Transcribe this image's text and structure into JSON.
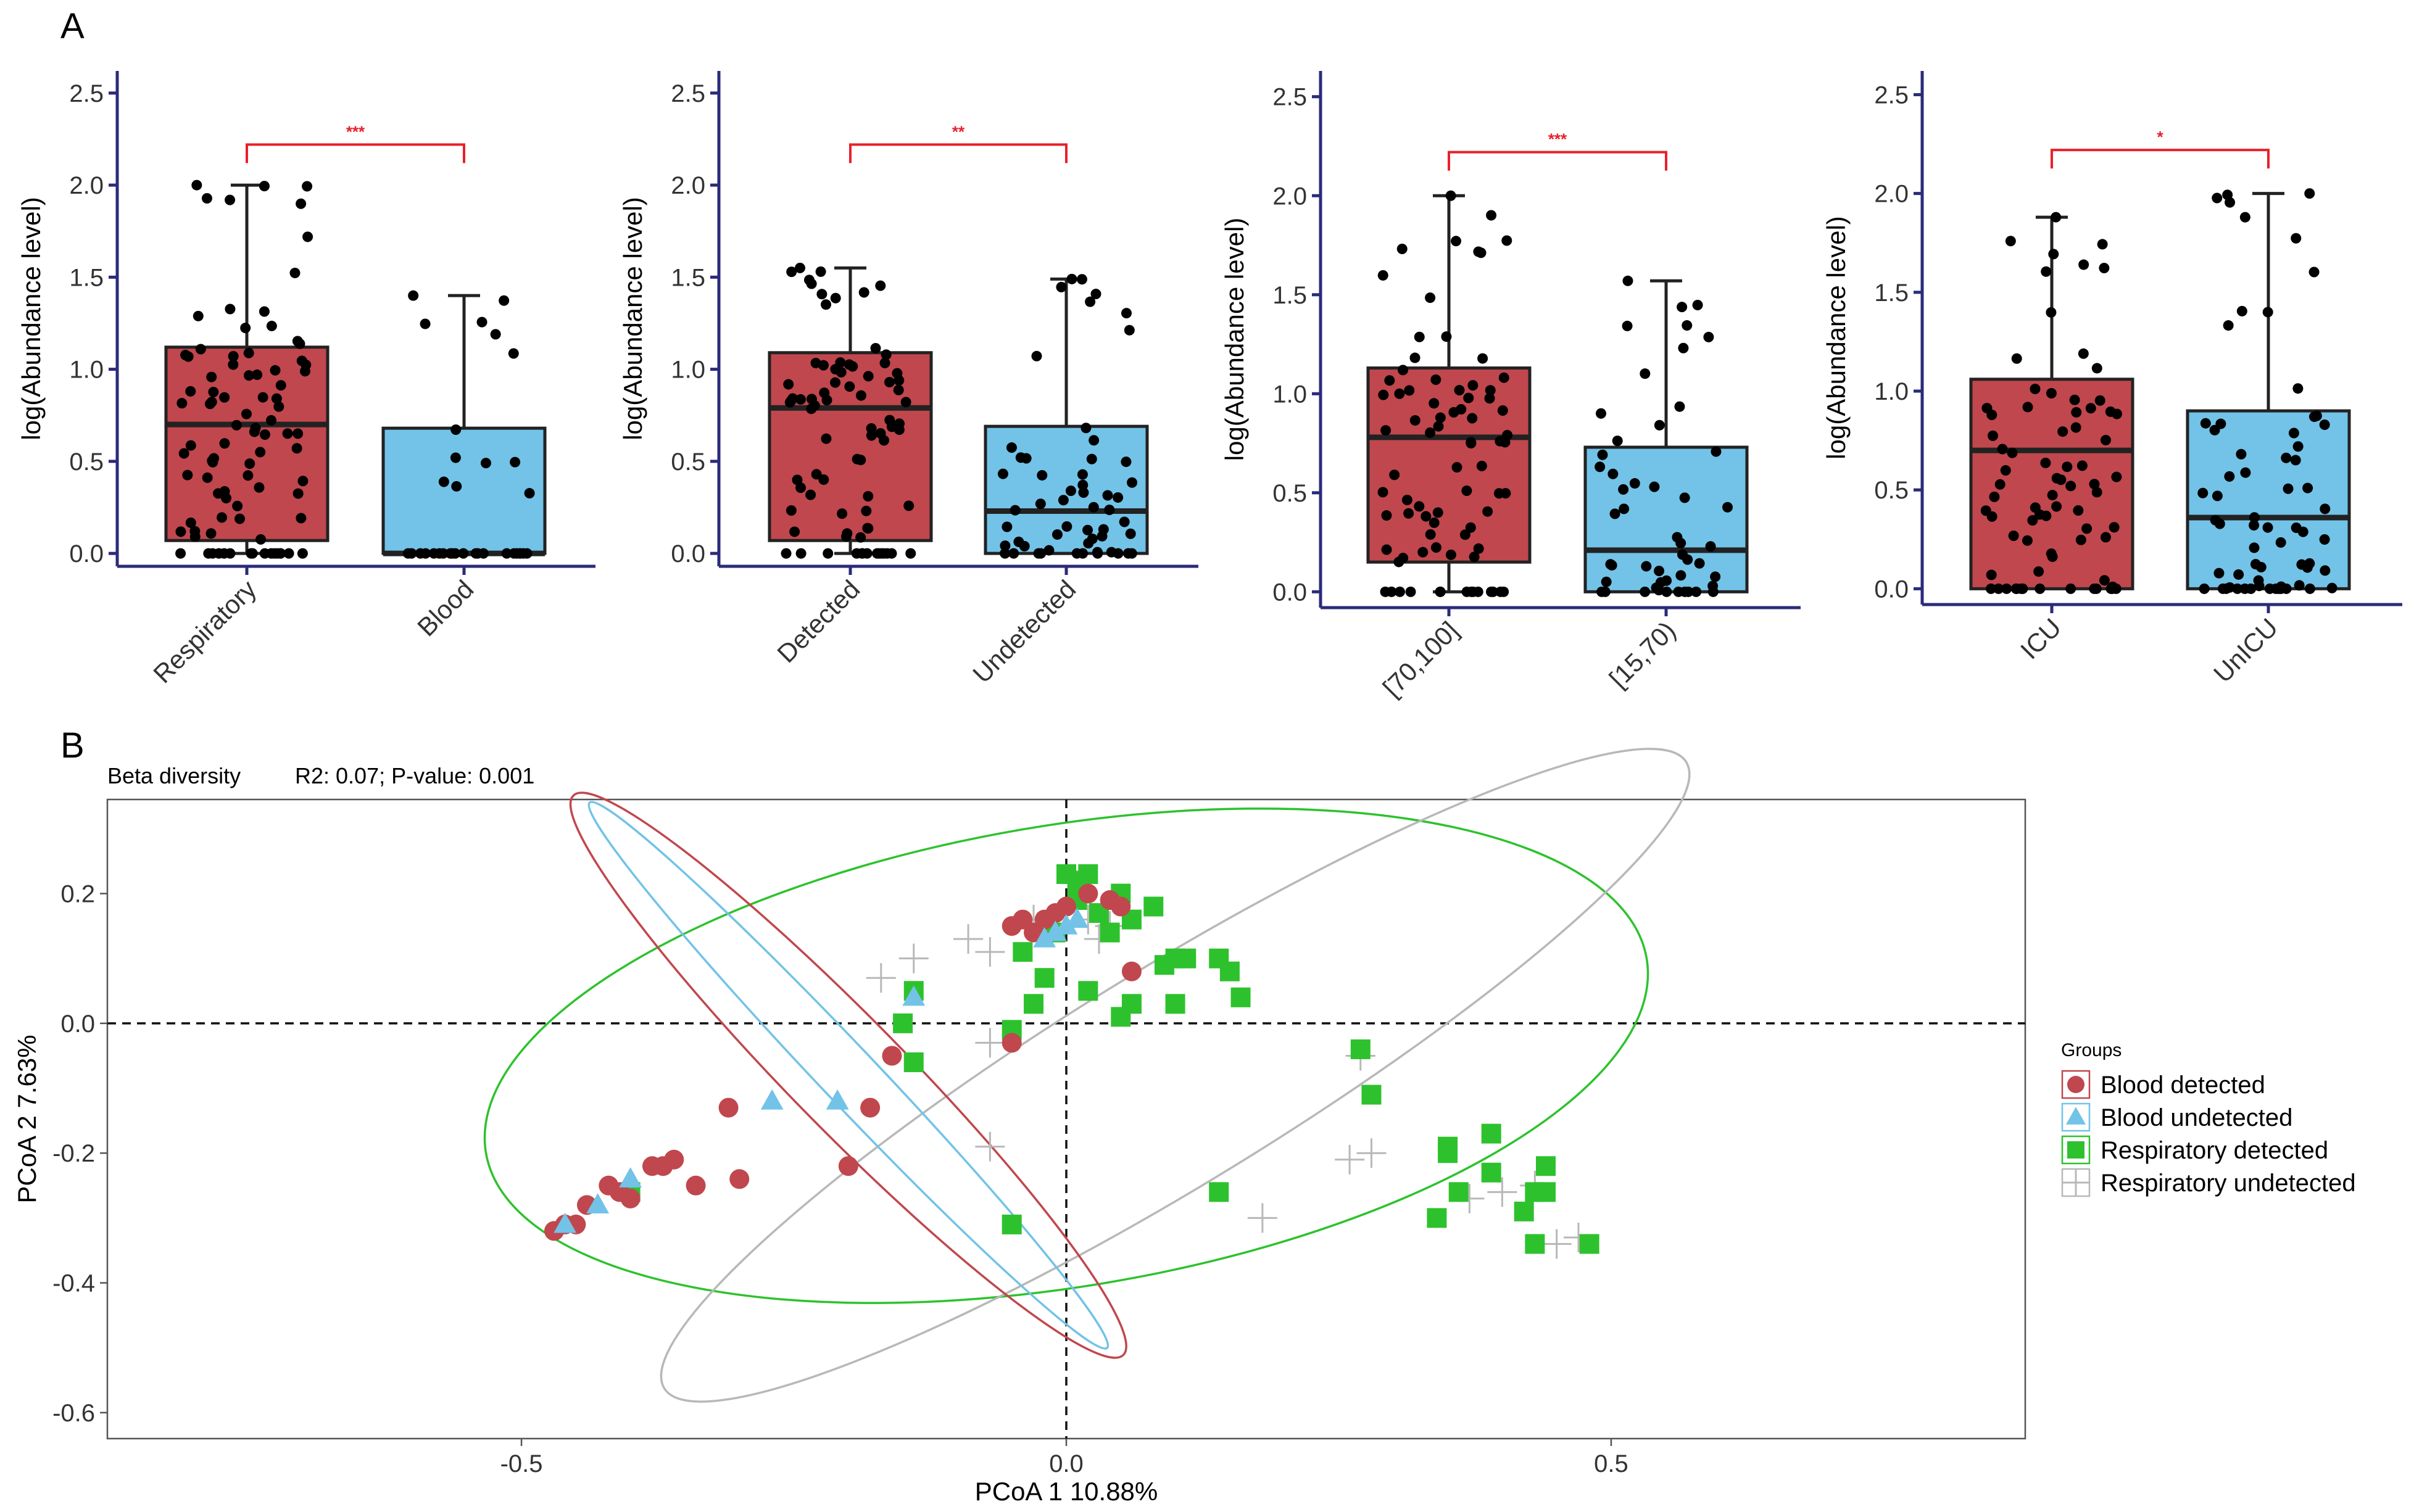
{
  "panel_labels": {
    "a": "A",
    "b": "B"
  },
  "colors": {
    "box_red": "#C0474D",
    "box_blue": "#72C3E7",
    "axis_navy": "#2B2B7A",
    "sig_red": "#E8202A",
    "dot": "#000000",
    "blood_detected": "#C0474D",
    "blood_undetected": "#72C3E7",
    "resp_detected": "#2DC22D",
    "resp_undetected": "#B8B8B8"
  },
  "chart_data": [
    {
      "type": "box",
      "panel": "A-1",
      "ylabel": "log(Abundance level)",
      "ylim": [
        -0.07,
        2.62
      ],
      "yticks": [
        "0.0",
        "0.5",
        "1.0",
        "1.5",
        "2.0",
        "2.5"
      ],
      "categories": [
        "Respiratory",
        "Blood"
      ],
      "boxes": [
        {
          "min": 0.0,
          "q1": 0.07,
          "median": 0.7,
          "q3": 1.12,
          "max": 2.0,
          "n": 90
        },
        {
          "min": 0.0,
          "q1": 0.0,
          "median": 0.0,
          "q3": 0.68,
          "max": 1.4,
          "n": 34
        }
      ],
      "significance": "***"
    },
    {
      "type": "box",
      "panel": "A-2",
      "ylabel": "log(Abundance level)",
      "ylim": [
        -0.07,
        2.62
      ],
      "yticks": [
        "0.0",
        "0.5",
        "1.0",
        "1.5",
        "2.0",
        "2.5"
      ],
      "categories": [
        "Detected",
        "Undetected"
      ],
      "boxes": [
        {
          "min": 0.0,
          "q1": 0.07,
          "median": 0.79,
          "q3": 1.09,
          "max": 1.55,
          "n": 80
        },
        {
          "min": 0.0,
          "q1": 0.0,
          "median": 0.23,
          "q3": 0.69,
          "max": 1.49,
          "n": 55
        }
      ],
      "significance": "**"
    },
    {
      "type": "box",
      "panel": "A-3",
      "ylabel": "log(Abundance level)",
      "ylim": [
        -0.08,
        2.63
      ],
      "yticks": [
        "0.0",
        "0.5",
        "1.0",
        "1.5",
        "2.0",
        "2.5"
      ],
      "categories": [
        "[70,100]",
        "[15,70)"
      ],
      "boxes": [
        {
          "min": 0.0,
          "q1": 0.15,
          "median": 0.78,
          "q3": 1.13,
          "max": 2.0,
          "n": 80
        },
        {
          "min": 0.0,
          "q1": 0.0,
          "median": 0.21,
          "q3": 0.73,
          "max": 1.57,
          "n": 50
        }
      ],
      "significance": "***"
    },
    {
      "type": "box",
      "panel": "A-4",
      "ylabel": "log(Abundance level)",
      "ylim": [
        -0.08,
        2.62
      ],
      "yticks": [
        "0.0",
        "0.5",
        "1.0",
        "1.5",
        "2.0",
        "2.5"
      ],
      "categories": [
        "ICU",
        "UnICU"
      ],
      "boxes": [
        {
          "min": 0.0,
          "q1": 0.0,
          "median": 0.7,
          "q3": 1.06,
          "max": 1.88,
          "n": 75
        },
        {
          "min": 0.0,
          "q1": 0.0,
          "median": 0.36,
          "q3": 0.9,
          "max": 2.0,
          "n": 65
        }
      ],
      "significance": "*"
    },
    {
      "type": "scatter",
      "panel": "B",
      "title": "Beta diversity",
      "subtitle": "R2: 0.07; P-value: 0.001",
      "xlabel": "PCoA 1 10.88%",
      "ylabel": "PCoA 2 7.63%",
      "xlim": [
        -0.88,
        0.88
      ],
      "ylim": [
        -0.64,
        0.345
      ],
      "xticks": [
        "-0.5",
        "0.0",
        "0.5"
      ],
      "yticks": [
        "0.2",
        "0.0",
        "-0.2",
        "-0.4",
        "-0.6"
      ],
      "legend_title": "Groups",
      "legend_position": "right",
      "series": [
        {
          "name": "Blood detected",
          "shape": "circle",
          "points": [
            [
              -0.47,
              -0.32
            ],
            [
              -0.46,
              -0.31
            ],
            [
              -0.45,
              -0.31
            ],
            [
              -0.42,
              -0.25
            ],
            [
              -0.41,
              -0.26
            ],
            [
              -0.4,
              -0.27
            ],
            [
              -0.38,
              -0.22
            ],
            [
              -0.37,
              -0.22
            ],
            [
              -0.36,
              -0.21
            ],
            [
              -0.34,
              -0.25
            ],
            [
              -0.31,
              -0.13
            ],
            [
              -0.3,
              -0.24
            ],
            [
              -0.2,
              -0.22
            ],
            [
              -0.18,
              -0.13
            ],
            [
              -0.16,
              -0.05
            ],
            [
              -0.05,
              -0.03
            ],
            [
              -0.05,
              0.15
            ],
            [
              -0.04,
              0.16
            ],
            [
              -0.02,
              0.16
            ],
            [
              -0.01,
              0.17
            ],
            [
              0.0,
              0.18
            ],
            [
              0.02,
              0.2
            ],
            [
              0.04,
              0.19
            ],
            [
              0.05,
              0.18
            ],
            [
              0.06,
              0.08
            ],
            [
              -0.44,
              -0.28
            ],
            [
              -0.03,
              0.14
            ]
          ]
        },
        {
          "name": "Blood undetected",
          "shape": "triangle",
          "points": [
            [
              -0.46,
              -0.31
            ],
            [
              -0.43,
              -0.28
            ],
            [
              -0.4,
              -0.24
            ],
            [
              -0.27,
              -0.12
            ],
            [
              -0.21,
              -0.12
            ],
            [
              -0.14,
              0.04
            ],
            [
              -0.01,
              0.14
            ],
            [
              0.0,
              0.15
            ],
            [
              0.01,
              0.16
            ],
            [
              -0.02,
              0.13
            ]
          ]
        },
        {
          "name": "Respiratory detected",
          "shape": "square",
          "points": [
            [
              -0.4,
              -0.26
            ],
            [
              -0.15,
              0.0
            ],
            [
              -0.14,
              0.05
            ],
            [
              -0.14,
              -0.06
            ],
            [
              -0.05,
              -0.01
            ],
            [
              -0.04,
              0.11
            ],
            [
              -0.03,
              0.03
            ],
            [
              -0.02,
              0.07
            ],
            [
              -0.01,
              0.14
            ],
            [
              0.0,
              0.23
            ],
            [
              0.01,
              0.22
            ],
            [
              0.01,
              0.19
            ],
            [
              0.02,
              0.23
            ],
            [
              0.02,
              0.05
            ],
            [
              0.03,
              0.17
            ],
            [
              0.04,
              0.14
            ],
            [
              0.05,
              0.2
            ],
            [
              0.05,
              0.01
            ],
            [
              0.06,
              0.03
            ],
            [
              0.06,
              0.16
            ],
            [
              0.08,
              0.18
            ],
            [
              0.09,
              0.09
            ],
            [
              0.1,
              0.1
            ],
            [
              0.1,
              0.03
            ],
            [
              0.11,
              0.1
            ],
            [
              0.14,
              0.1
            ],
            [
              0.14,
              -0.26
            ],
            [
              0.15,
              0.08
            ],
            [
              0.16,
              0.04
            ],
            [
              0.27,
              -0.04
            ],
            [
              0.28,
              -0.11
            ],
            [
              0.34,
              -0.3
            ],
            [
              0.35,
              -0.2
            ],
            [
              0.35,
              -0.19
            ],
            [
              0.36,
              -0.26
            ],
            [
              0.39,
              -0.17
            ],
            [
              0.39,
              -0.23
            ],
            [
              0.42,
              -0.29
            ],
            [
              0.43,
              -0.26
            ],
            [
              0.44,
              -0.22
            ],
            [
              0.44,
              -0.26
            ],
            [
              0.43,
              -0.34
            ],
            [
              0.48,
              -0.34
            ],
            [
              -0.05,
              -0.31
            ]
          ]
        },
        {
          "name": "Respiratory undetected",
          "shape": "cross",
          "points": [
            [
              -0.17,
              0.07
            ],
            [
              -0.14,
              0.1
            ],
            [
              -0.09,
              0.13
            ],
            [
              -0.07,
              0.11
            ],
            [
              -0.07,
              -0.03
            ],
            [
              -0.07,
              -0.19
            ],
            [
              -0.03,
              0.16
            ],
            [
              -0.01,
              0.15
            ],
            [
              0.02,
              0.16
            ],
            [
              0.03,
              0.13
            ],
            [
              0.04,
              0.15
            ],
            [
              0.18,
              -0.3
            ],
            [
              0.26,
              -0.21
            ],
            [
              0.28,
              -0.2
            ],
            [
              0.27,
              -0.05
            ],
            [
              0.37,
              -0.27
            ],
            [
              0.4,
              -0.26
            ],
            [
              0.43,
              -0.25
            ],
            [
              0.45,
              -0.34
            ],
            [
              0.47,
              -0.33
            ]
          ]
        }
      ],
      "ellipses": [
        {
          "group": "Respiratory detected",
          "cx": 0.0,
          "cy": -0.05,
          "rx": 0.54,
          "ry": 0.245,
          "angle_deg": -9.5
        },
        {
          "group": "Respiratory undetected",
          "cx": 0.1,
          "cy": -0.08,
          "rx": 0.55,
          "ry": 0.115,
          "angle_deg": -31.5
        },
        {
          "group": "Blood detected",
          "cx": -0.2,
          "cy": -0.08,
          "rx": 0.36,
          "ry": 0.06,
          "angle_deg": 45.5
        },
        {
          "group": "Blood undetected",
          "cx": -0.2,
          "cy": -0.08,
          "rx": 0.345,
          "ry": 0.03,
          "angle_deg": 46.5
        }
      ],
      "reference_lines": {
        "x": 0.0,
        "y": 0.0
      }
    }
  ]
}
